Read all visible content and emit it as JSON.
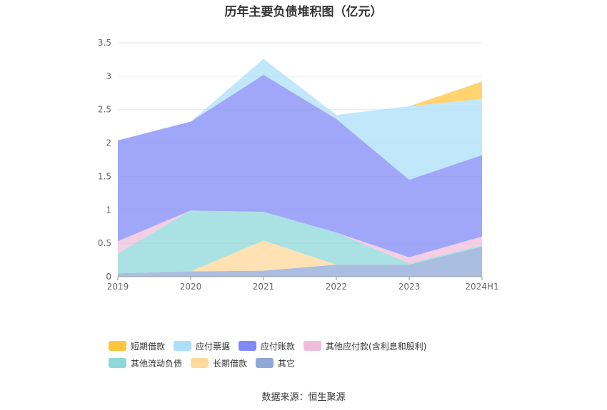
{
  "chart_data": {
    "type": "area",
    "title": "历年主要负债堆积图（亿元）",
    "categories": [
      "2019",
      "2020",
      "2021",
      "2022",
      "2023",
      "2024H1"
    ],
    "ylim": [
      0,
      3.5
    ],
    "y_ticks": [
      "0",
      "0.5",
      "1",
      "1.5",
      "2",
      "2.5",
      "3",
      "3.5"
    ],
    "stacked": true,
    "grid": true,
    "legend_position": "bottom",
    "series": [
      {
        "name": "其它",
        "color": "#8ea8d8",
        "values": [
          0.05,
          0.08,
          0.09,
          0.18,
          0.18,
          0.45
        ]
      },
      {
        "name": "长期借款",
        "color": "#ffd89b",
        "values": [
          0.0,
          0.0,
          0.45,
          0.0,
          0.0,
          0.0
        ]
      },
      {
        "name": "其他流动负债",
        "color": "#8ed8da",
        "values": [
          0.3,
          0.91,
          0.43,
          0.48,
          0.02,
          0.02
        ]
      },
      {
        "name": "其他应付款(含利息和股利)",
        "color": "#f0bddb",
        "values": [
          0.18,
          0.0,
          0.0,
          0.0,
          0.09,
          0.13
        ]
      },
      {
        "name": "应付账款",
        "color": "#8089f6",
        "values": [
          1.51,
          1.33,
          2.05,
          1.7,
          1.16,
          1.22
        ]
      },
      {
        "name": "应付票据",
        "color": "#acdffa",
        "values": [
          0.0,
          0.0,
          0.24,
          0.06,
          1.1,
          0.84
        ]
      },
      {
        "name": "短期借款",
        "color": "#ffc53d",
        "values": [
          0.0,
          0.0,
          0.0,
          0.0,
          0.0,
          0.26
        ]
      }
    ]
  },
  "legend": [
    {
      "label": "短期借款",
      "color": "#ffc53d"
    },
    {
      "label": "应付票据",
      "color": "#acdffa"
    },
    {
      "label": "应付账款",
      "color": "#8089f6"
    },
    {
      "label": "其他应付款(含利息和股利)",
      "color": "#f0bddb"
    },
    {
      "label": "其他流动负债",
      "color": "#8ed8da"
    },
    {
      "label": "长期借款",
      "color": "#ffd89b"
    },
    {
      "label": "其它",
      "color": "#8ea8d8"
    }
  ],
  "source": "数据来源：恒生聚源"
}
